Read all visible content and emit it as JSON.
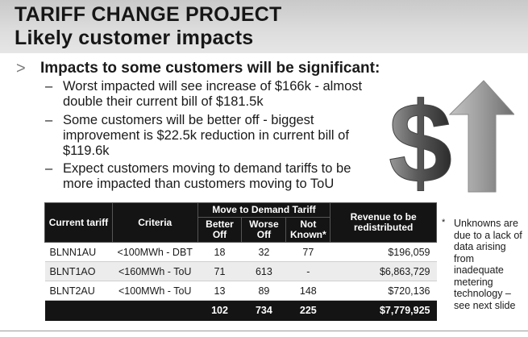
{
  "header": {
    "title_line1": "TARIFF CHANGE PROJECT",
    "title_line2": "Likely customer impacts"
  },
  "lead": {
    "marker": ">",
    "text": "Impacts to some customers will be significant:"
  },
  "bullets": [
    {
      "dash": "–",
      "text": "Worst impacted will see increase of $166k - almost double their current bill of $181.5k"
    },
    {
      "dash": "–",
      "text": "Some customers will be better off - biggest improvement is $22.5k reduction in current bill of $119.6k"
    },
    {
      "dash": "–",
      "text": "Expect customers moving to demand tariffs to be more impacted than customers moving to ToU"
    }
  ],
  "illustration": {
    "icon": "dollar-up-arrow-icon",
    "dollar_glyph": "$"
  },
  "table": {
    "headers": {
      "current_tariff": "Current tariff",
      "criteria": "Criteria",
      "move_group": "Move to Demand Tariff",
      "better_off": "Better Off",
      "worse_off": "Worse Off",
      "not_known": "Not Known*",
      "revenue": "Revenue to be redistributed"
    },
    "rows": [
      {
        "tariff": "BLNN1AU",
        "criteria": "<100MWh - DBT",
        "better": "18",
        "worse": "32",
        "unknown": "77",
        "revenue": "$196,059"
      },
      {
        "tariff": "BLNT1AO",
        "criteria": "<160MWh - ToU",
        "better": "71",
        "worse": "613",
        "unknown": "-",
        "revenue": "$6,863,729"
      },
      {
        "tariff": "BLNT2AU",
        "criteria": "<100MWh - ToU",
        "better": "13",
        "worse": "89",
        "unknown": "148",
        "revenue": "$720,136"
      }
    ],
    "totals": {
      "better": "102",
      "worse": "734",
      "unknown": "225",
      "revenue": "$7,779,925"
    }
  },
  "footnote": {
    "star": "*",
    "text": "Unknowns are due to a lack of data arising from inadequate metering technology – see next slide"
  }
}
